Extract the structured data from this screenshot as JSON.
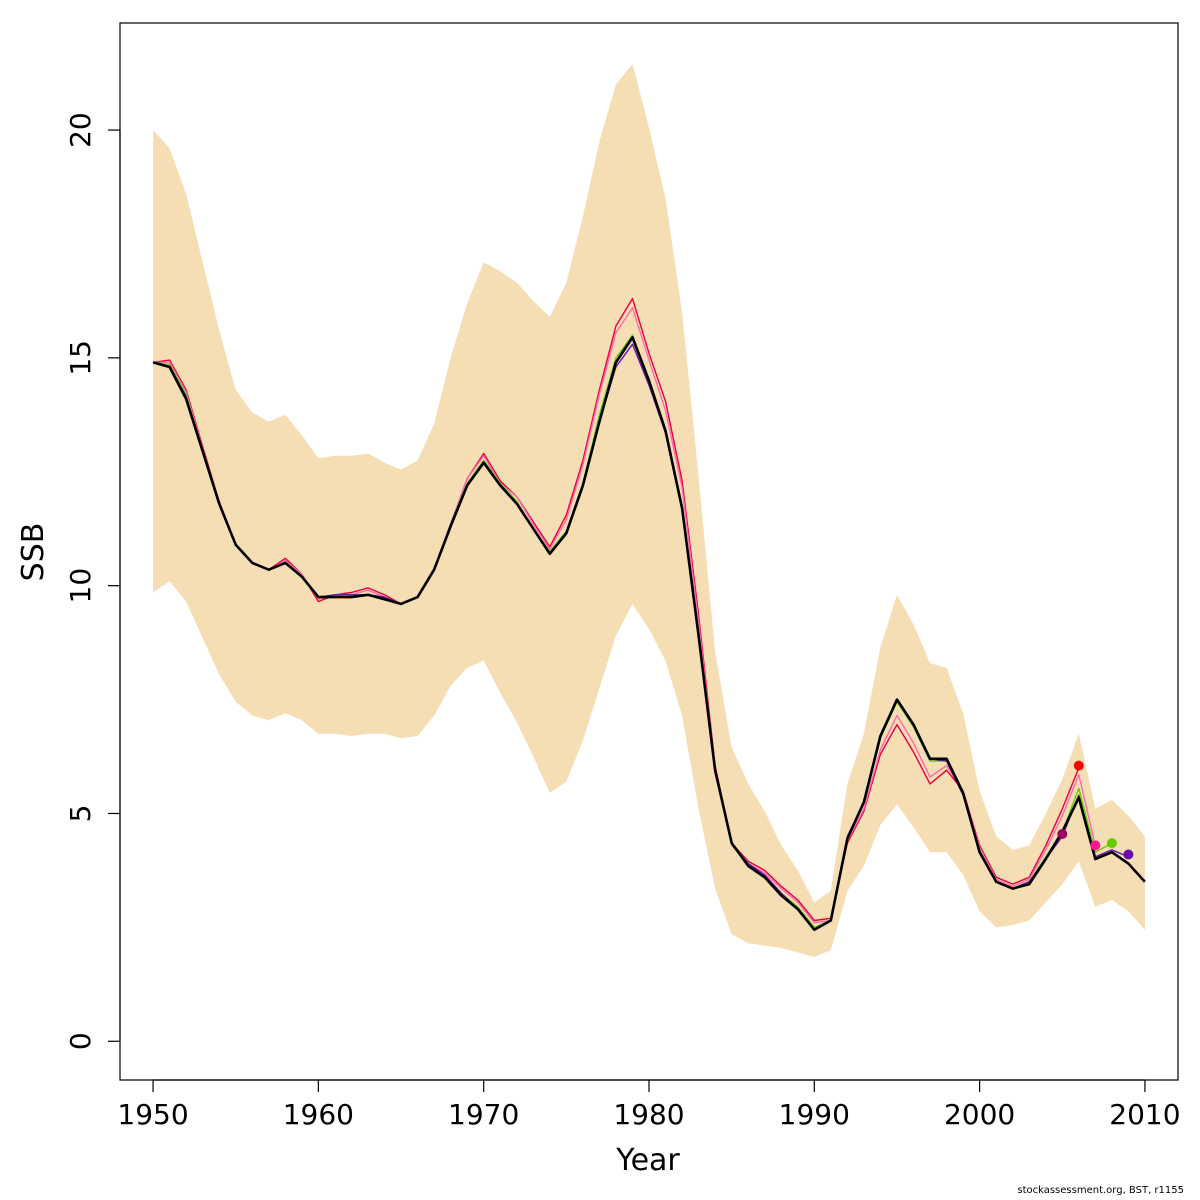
{
  "chart_data": {
    "type": "line",
    "title": "",
    "xlabel": "Year",
    "ylabel": "SSB",
    "xlim": [
      1948,
      2012
    ],
    "ylim": [
      -0.85,
      22.35
    ],
    "x_ticks": [
      1950,
      1960,
      1970,
      1980,
      1990,
      2000,
      2010
    ],
    "y_ticks": [
      0,
      5,
      10,
      15,
      20
    ],
    "grid": false,
    "legend": "none",
    "band": {
      "color": "#F5DEB3",
      "years": [
        1950,
        1951,
        1952,
        1953,
        1954,
        1955,
        1956,
        1957,
        1958,
        1959,
        1960,
        1961,
        1962,
        1963,
        1964,
        1965,
        1966,
        1967,
        1968,
        1969,
        1970,
        1971,
        1972,
        1973,
        1974,
        1975,
        1976,
        1977,
        1978,
        1979,
        1980,
        1981,
        1982,
        1983,
        1984,
        1985,
        1986,
        1987,
        1988,
        1989,
        1990,
        1991,
        1992,
        1993,
        1994,
        1995,
        1996,
        1997,
        1998,
        1999,
        2000,
        2001,
        2002,
        2003,
        2004,
        2005,
        2006,
        2007,
        2008,
        2009,
        2010
      ],
      "upper": [
        20.0,
        19.6,
        18.6,
        17.1,
        15.6,
        14.3,
        13.8,
        13.6,
        13.75,
        13.3,
        12.8,
        12.85,
        12.85,
        12.9,
        12.7,
        12.55,
        12.75,
        13.55,
        15.0,
        16.2,
        17.1,
        16.9,
        16.65,
        16.25,
        15.9,
        16.65,
        18.1,
        19.75,
        21.0,
        21.45,
        20.05,
        18.5,
        16.0,
        12.4,
        8.55,
        6.45,
        5.65,
        5.05,
        4.3,
        3.75,
        3.05,
        3.3,
        5.65,
        6.75,
        8.65,
        9.8,
        9.15,
        8.3,
        8.2,
        7.2,
        5.5,
        4.5,
        4.2,
        4.3,
        5.0,
        5.75,
        6.75,
        5.1,
        5.3,
        4.95,
        4.5
      ],
      "lower": [
        9.85,
        10.1,
        9.65,
        8.85,
        8.05,
        7.45,
        7.15,
        7.05,
        7.2,
        7.05,
        6.75,
        6.75,
        6.7,
        6.75,
        6.75,
        6.65,
        6.7,
        7.15,
        7.8,
        8.2,
        8.35,
        7.65,
        7.0,
        6.25,
        5.45,
        5.7,
        6.6,
        7.75,
        8.9,
        9.6,
        9.05,
        8.35,
        7.15,
        5.1,
        3.35,
        2.35,
        2.15,
        2.1,
        2.05,
        1.95,
        1.85,
        2.0,
        3.3,
        3.85,
        4.75,
        5.2,
        4.7,
        4.15,
        4.15,
        3.65,
        2.85,
        2.5,
        2.55,
        2.65,
        3.05,
        3.45,
        3.95,
        2.95,
        3.1,
        2.85,
        2.45
      ]
    },
    "series": [
      {
        "color": "#E8003A",
        "x": [
          1950,
          1951,
          1952,
          1953,
          1954,
          1955,
          1956,
          1957,
          1958,
          1959,
          1960,
          1961,
          1962,
          1963,
          1964,
          1965,
          1966,
          1967,
          1968,
          1969,
          1970,
          1971,
          1972,
          1973,
          1974,
          1975,
          1976,
          1977,
          1978,
          1979,
          1980,
          1981,
          1982,
          1983,
          1984,
          1985,
          1986,
          1987,
          1988,
          1989,
          1990,
          1991,
          1992,
          1993,
          1994,
          1995,
          1996,
          1997,
          1998,
          1999,
          2000,
          2001,
          2002,
          2003,
          2004,
          2005,
          2006
        ],
        "values": [
          14.9,
          14.95,
          14.3,
          13.05,
          11.85,
          10.9,
          10.5,
          10.35,
          10.6,
          10.25,
          9.65,
          9.8,
          9.85,
          9.95,
          9.8,
          9.6,
          9.75,
          10.35,
          11.35,
          12.35,
          12.9,
          12.3,
          11.95,
          11.4,
          10.85,
          11.55,
          12.75,
          14.3,
          15.7,
          16.3,
          15.1,
          14.05,
          12.3,
          9.35,
          6.05,
          4.35,
          3.95,
          3.75,
          3.4,
          3.1,
          2.65,
          2.7,
          4.35,
          5.05,
          6.3,
          6.95,
          6.35,
          5.65,
          5.95,
          5.5,
          4.3,
          3.6,
          3.45,
          3.6,
          4.3,
          5.1,
          6.0
        ]
      },
      {
        "color": "#FF69B4",
        "x": [
          1950,
          1951,
          1952,
          1953,
          1954,
          1955,
          1956,
          1957,
          1958,
          1959,
          1960,
          1961,
          1962,
          1963,
          1964,
          1965,
          1966,
          1967,
          1968,
          1969,
          1970,
          1971,
          1972,
          1973,
          1974,
          1975,
          1976,
          1977,
          1978,
          1979,
          1980,
          1981,
          1982,
          1983,
          1984,
          1985,
          1986,
          1987,
          1988,
          1989,
          1990,
          1991,
          1992,
          1993,
          1994,
          1995,
          1996,
          1997,
          1998,
          1999,
          2000,
          2001,
          2002,
          2003,
          2004,
          2005,
          2006,
          2007
        ],
        "values": [
          14.9,
          14.9,
          14.25,
          13.0,
          11.85,
          10.9,
          10.5,
          10.35,
          10.55,
          10.25,
          9.7,
          9.8,
          9.8,
          9.9,
          9.75,
          9.6,
          9.75,
          10.35,
          11.35,
          12.35,
          12.85,
          12.25,
          11.95,
          11.35,
          10.8,
          11.45,
          12.65,
          14.2,
          15.55,
          16.1,
          14.95,
          13.85,
          12.15,
          9.2,
          6.0,
          4.3,
          3.9,
          3.7,
          3.35,
          3.05,
          2.6,
          2.65,
          4.4,
          5.1,
          6.4,
          7.15,
          6.55,
          5.8,
          6.05,
          5.5,
          4.25,
          3.55,
          3.4,
          3.55,
          4.2,
          4.95,
          5.85,
          4.3
        ]
      },
      {
        "color": "#66CC00",
        "x": [
          1950,
          1951,
          1952,
          1953,
          1954,
          1955,
          1956,
          1957,
          1958,
          1959,
          1960,
          1961,
          1962,
          1963,
          1964,
          1965,
          1966,
          1967,
          1968,
          1969,
          1970,
          1971,
          1972,
          1973,
          1974,
          1975,
          1976,
          1977,
          1978,
          1979,
          1980,
          1981,
          1982,
          1983,
          1984,
          1985,
          1986,
          1987,
          1988,
          1989,
          1990,
          1991,
          1992,
          1993,
          1994,
          1995,
          1996,
          1997,
          1998,
          1999,
          2000,
          2001,
          2002,
          2003,
          2004,
          2005,
          2006,
          2007,
          2008
        ],
        "values": [
          14.9,
          14.85,
          14.2,
          12.95,
          11.8,
          10.9,
          10.5,
          10.35,
          10.5,
          10.2,
          9.75,
          9.8,
          9.8,
          9.8,
          9.75,
          9.6,
          9.75,
          10.35,
          11.35,
          12.25,
          12.75,
          12.25,
          11.85,
          11.25,
          10.75,
          11.2,
          12.25,
          13.75,
          15.0,
          15.5,
          14.5,
          13.45,
          11.75,
          8.95,
          5.95,
          4.35,
          3.9,
          3.65,
          3.25,
          2.95,
          2.5,
          2.65,
          4.45,
          5.25,
          6.65,
          7.45,
          6.9,
          6.15,
          6.15,
          5.45,
          4.2,
          3.5,
          3.35,
          3.5,
          4.05,
          4.6,
          5.55,
          4.15,
          4.35
        ]
      },
      {
        "color": "#6A0DAD",
        "x": [
          1950,
          1951,
          1952,
          1953,
          1954,
          1955,
          1956,
          1957,
          1958,
          1959,
          1960,
          1961,
          1962,
          1963,
          1964,
          1965,
          1966,
          1967,
          1968,
          1969,
          1970,
          1971,
          1972,
          1973,
          1974,
          1975,
          1976,
          1977,
          1978,
          1979,
          1980,
          1981,
          1982,
          1983,
          1984,
          1985,
          1986,
          1987,
          1988,
          1989,
          1990,
          1991,
          1992,
          1993,
          1994,
          1995,
          1996,
          1997,
          1998,
          1999,
          2000,
          2001,
          2002,
          2003,
          2004,
          2005,
          2006,
          2007,
          2008,
          2009
        ],
        "values": [
          14.9,
          14.8,
          14.15,
          12.95,
          11.8,
          10.9,
          10.5,
          10.35,
          10.5,
          10.2,
          9.75,
          9.8,
          9.8,
          9.8,
          9.75,
          9.6,
          9.75,
          10.35,
          11.35,
          12.2,
          12.7,
          12.2,
          11.8,
          11.25,
          10.7,
          11.15,
          12.2,
          13.6,
          14.8,
          15.3,
          14.4,
          13.35,
          11.65,
          8.9,
          5.95,
          4.35,
          3.9,
          3.65,
          3.25,
          2.9,
          2.45,
          2.65,
          4.5,
          5.25,
          6.7,
          7.5,
          6.95,
          6.2,
          6.15,
          5.4,
          4.15,
          3.5,
          3.35,
          3.5,
          4.0,
          4.5,
          5.4,
          4.05,
          4.2,
          4.05
        ]
      },
      {
        "color": "#000000",
        "x": [
          1950,
          1951,
          1952,
          1953,
          1954,
          1955,
          1956,
          1957,
          1958,
          1959,
          1960,
          1961,
          1962,
          1963,
          1964,
          1965,
          1966,
          1967,
          1968,
          1969,
          1970,
          1971,
          1972,
          1973,
          1974,
          1975,
          1976,
          1977,
          1978,
          1979,
          1980,
          1981,
          1982,
          1983,
          1984,
          1985,
          1986,
          1987,
          1988,
          1989,
          1990,
          1991,
          1992,
          1993,
          1994,
          1995,
          1996,
          1997,
          1998,
          1999,
          2000,
          2001,
          2002,
          2003,
          2004,
          2005,
          2006,
          2007,
          2008,
          2009,
          2010
        ],
        "values": [
          14.9,
          14.8,
          14.1,
          12.95,
          11.8,
          10.9,
          10.5,
          10.35,
          10.5,
          10.2,
          9.75,
          9.75,
          9.75,
          9.8,
          9.7,
          9.6,
          9.75,
          10.35,
          11.3,
          12.2,
          12.7,
          12.2,
          11.8,
          11.25,
          10.7,
          11.15,
          12.2,
          13.6,
          14.9,
          15.45,
          14.5,
          13.4,
          11.7,
          8.9,
          5.95,
          4.35,
          3.85,
          3.6,
          3.2,
          2.9,
          2.45,
          2.65,
          4.45,
          5.25,
          6.7,
          7.5,
          6.95,
          6.2,
          6.2,
          5.45,
          4.15,
          3.5,
          3.35,
          3.45,
          4.0,
          4.6,
          5.35,
          4.0,
          4.15,
          3.9,
          3.5
        ]
      }
    ],
    "terminal_points": [
      {
        "x": 2005,
        "y": 4.55,
        "color": "#9B0060"
      },
      {
        "x": 2006,
        "y": 6.05,
        "color": "#FF0000"
      },
      {
        "x": 2007,
        "y": 4.3,
        "color": "#FF1493"
      },
      {
        "x": 2008,
        "y": 4.35,
        "color": "#66CC00"
      },
      {
        "x": 2009,
        "y": 4.1,
        "color": "#6A0DAD"
      }
    ]
  },
  "footer": "stockassessment.org, BST, r1155"
}
